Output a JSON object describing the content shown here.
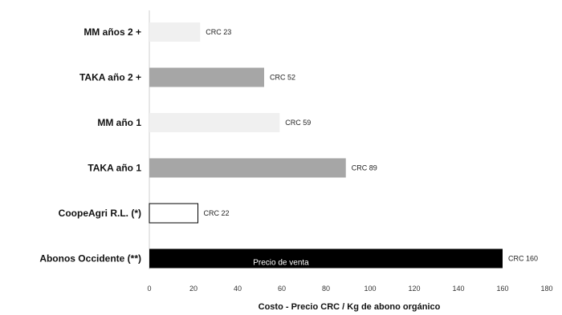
{
  "chart_data": {
    "type": "bar",
    "orientation": "horizontal",
    "categories": [
      "MM años 2 +",
      "TAKA año 2 +",
      "MM año 1",
      "TAKA año 1",
      "CoopeAgri R.L. (*)",
      "Abonos Occidente (**)"
    ],
    "values": [
      23,
      52,
      59,
      89,
      22,
      160
    ],
    "value_labels": [
      "CRC 23",
      "CRC 52",
      "CRC 59",
      "CRC 89",
      "CRC 22",
      "CRC 160"
    ],
    "bar_colors": [
      "#f0f0f0",
      "#a6a6a6",
      "#f0f0f0",
      "#a6a6a6",
      "#ffffff",
      "#000000"
    ],
    "bar_borders": [
      "none",
      "none",
      "none",
      "none",
      "#000000",
      "none"
    ],
    "inner_label": "Precio de venta",
    "inner_label_category": "Abonos Occidente (**)",
    "xlabel": "Costo - Precio CRC / Kg de abono orgánico",
    "ylabel": "",
    "xlim": [
      0,
      180
    ],
    "xticks": [
      0,
      20,
      40,
      60,
      80,
      100,
      120,
      140,
      160,
      180
    ],
    "grid": false,
    "legend": "none"
  }
}
